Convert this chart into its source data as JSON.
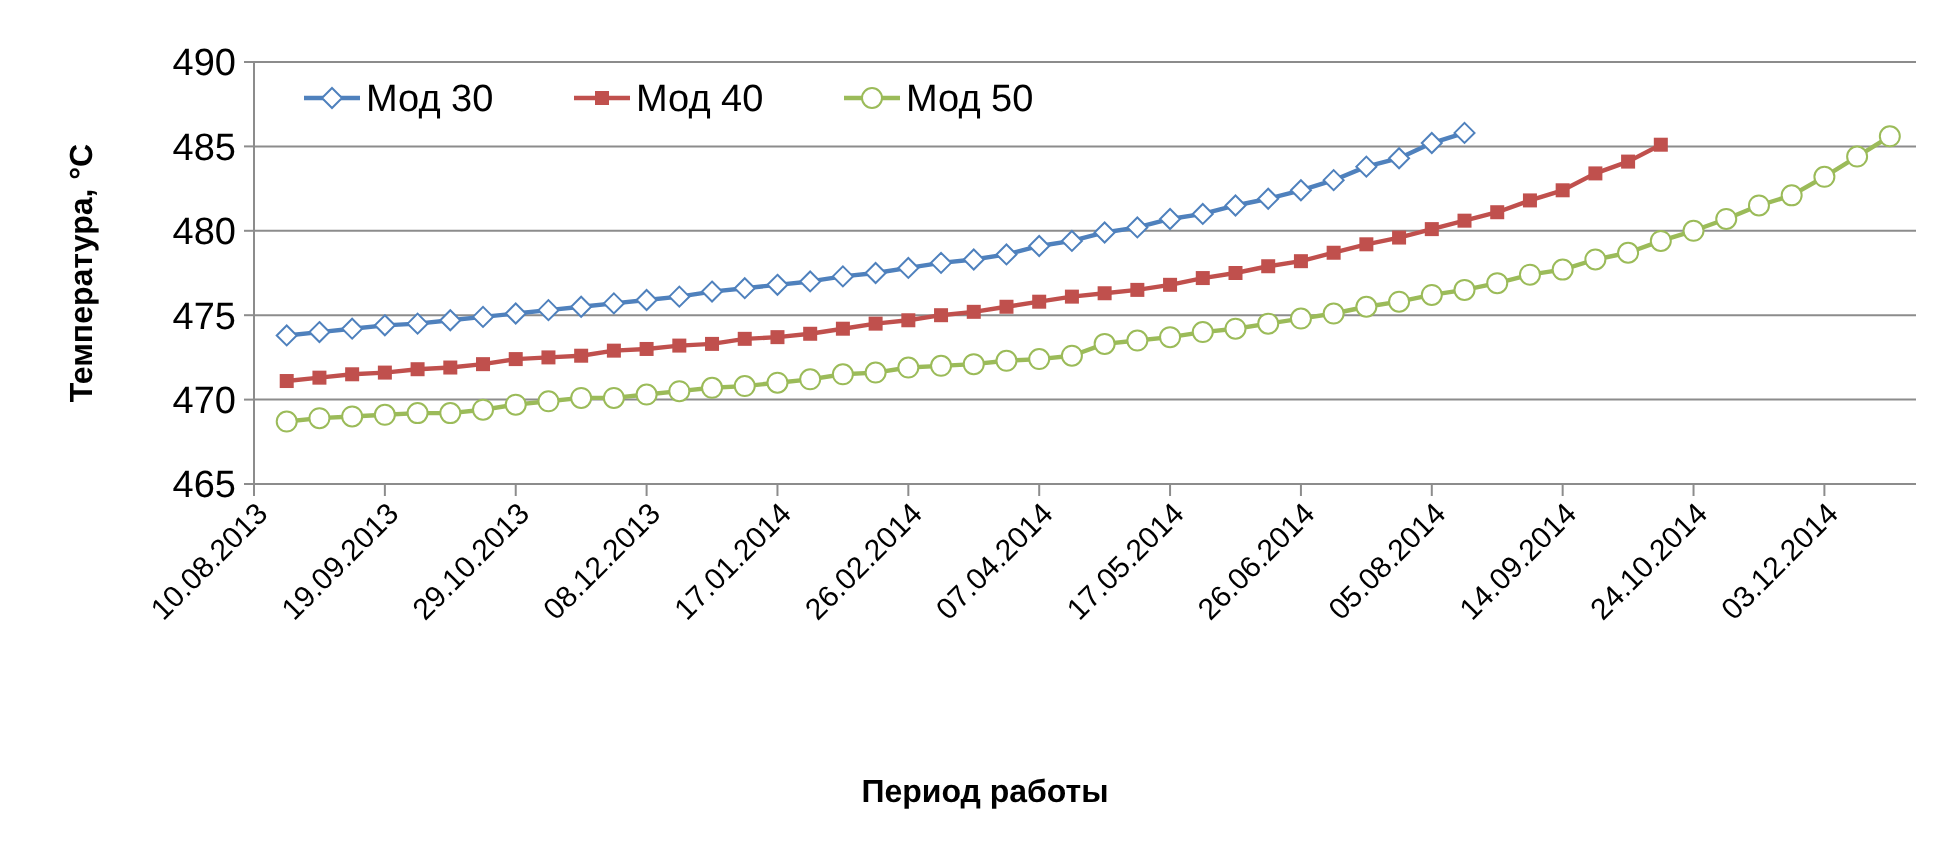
{
  "chart_data": {
    "type": "line",
    "xlabel": "Период работы",
    "ylabel": "Температура, °C",
    "x": [
      "2013-08-20",
      "2013-08-30",
      "2013-09-09",
      "2013-09-19",
      "2013-09-29",
      "2013-10-09",
      "2013-10-19",
      "2013-10-29",
      "2013-11-08",
      "2013-11-18",
      "2013-11-28",
      "2013-12-08",
      "2013-12-18",
      "2013-12-28",
      "2014-01-07",
      "2014-01-17",
      "2014-01-27",
      "2014-02-06",
      "2014-02-16",
      "2014-02-26",
      "2014-03-08",
      "2014-03-18",
      "2014-03-28",
      "2014-04-07",
      "2014-04-17",
      "2014-04-27",
      "2014-05-07",
      "2014-05-17",
      "2014-05-27",
      "2014-06-06",
      "2014-06-16",
      "2014-06-26",
      "2014-07-06",
      "2014-07-16",
      "2014-07-26",
      "2014-08-05",
      "2014-08-15",
      "2014-08-25",
      "2014-09-04",
      "2014-09-14",
      "2014-09-24",
      "2014-10-04",
      "2014-10-14",
      "2014-10-24",
      "2014-11-03",
      "2014-11-13",
      "2014-11-23",
      "2014-12-03",
      "2014-12-13",
      "2014-12-23"
    ],
    "series": [
      {
        "name": "Мод 30",
        "color": "#4f81bd",
        "marker": "diamond",
        "values": [
          473.8,
          474.0,
          474.2,
          474.4,
          474.5,
          474.7,
          474.9,
          475.1,
          475.3,
          475.5,
          475.7,
          475.9,
          476.1,
          476.4,
          476.6,
          476.8,
          477.0,
          477.3,
          477.5,
          477.8,
          478.1,
          478.3,
          478.6,
          479.1,
          479.4,
          479.9,
          480.2,
          480.7,
          481.0,
          481.5,
          481.9,
          482.4,
          483.0,
          483.8,
          484.3,
          485.2,
          485.8,
          null,
          null,
          null,
          null,
          null,
          null,
          null,
          null,
          null,
          null,
          null,
          null,
          null
        ]
      },
      {
        "name": "Мод 40",
        "color": "#c0504d",
        "marker": "square",
        "values": [
          471.1,
          471.3,
          471.5,
          471.6,
          471.8,
          471.9,
          472.1,
          472.4,
          472.5,
          472.6,
          472.9,
          473.0,
          473.2,
          473.3,
          473.6,
          473.7,
          473.9,
          474.2,
          474.5,
          474.7,
          475.0,
          475.2,
          475.5,
          475.8,
          476.1,
          476.3,
          476.5,
          476.8,
          477.2,
          477.5,
          477.9,
          478.2,
          478.7,
          479.2,
          479.6,
          480.1,
          480.6,
          481.1,
          481.8,
          482.4,
          483.4,
          484.1,
          485.1,
          null,
          null,
          null,
          null,
          null,
          null,
          null
        ]
      },
      {
        "name": "Мод 50",
        "color": "#9bbb59",
        "marker": "circle",
        "values": [
          468.7,
          468.9,
          469.0,
          469.1,
          469.2,
          469.2,
          469.4,
          469.7,
          469.9,
          470.1,
          470.1,
          470.3,
          470.5,
          470.7,
          470.8,
          471.0,
          471.2,
          471.5,
          471.6,
          471.9,
          472.0,
          472.1,
          472.3,
          472.4,
          472.6,
          473.3,
          473.5,
          473.7,
          474.0,
          474.2,
          474.5,
          474.8,
          475.1,
          475.5,
          475.8,
          476.2,
          476.5,
          476.9,
          477.4,
          477.7,
          478.3,
          478.7,
          479.4,
          480.0,
          480.7,
          481.5,
          482.1,
          483.2,
          484.4,
          485.6
        ]
      }
    ],
    "xlim": [
      "2013-08-10",
      "2014-12-31"
    ],
    "xticks": [
      {
        "value": "2013-08-10",
        "label": "10.08.2013"
      },
      {
        "value": "2013-09-19",
        "label": "19.09.2013"
      },
      {
        "value": "2013-10-29",
        "label": "29.10.2013"
      },
      {
        "value": "2013-12-08",
        "label": "08.12.2013"
      },
      {
        "value": "2014-01-17",
        "label": "17.01.2014"
      },
      {
        "value": "2014-02-26",
        "label": "26.02.2014"
      },
      {
        "value": "2014-04-07",
        "label": "07.04.2014"
      },
      {
        "value": "2014-05-17",
        "label": "17.05.2014"
      },
      {
        "value": "2014-06-26",
        "label": "26.06.2014"
      },
      {
        "value": "2014-08-05",
        "label": "05.08.2014"
      },
      {
        "value": "2014-09-14",
        "label": "14.09.2014"
      },
      {
        "value": "2014-10-24",
        "label": "24.10.2014"
      },
      {
        "value": "2014-12-03",
        "label": "03.12.2014"
      }
    ],
    "ylim": [
      465,
      490
    ],
    "yticks": [
      465,
      470,
      475,
      480,
      485,
      490
    ],
    "grid": "y",
    "legend": "top left",
    "line_style": "solid"
  }
}
